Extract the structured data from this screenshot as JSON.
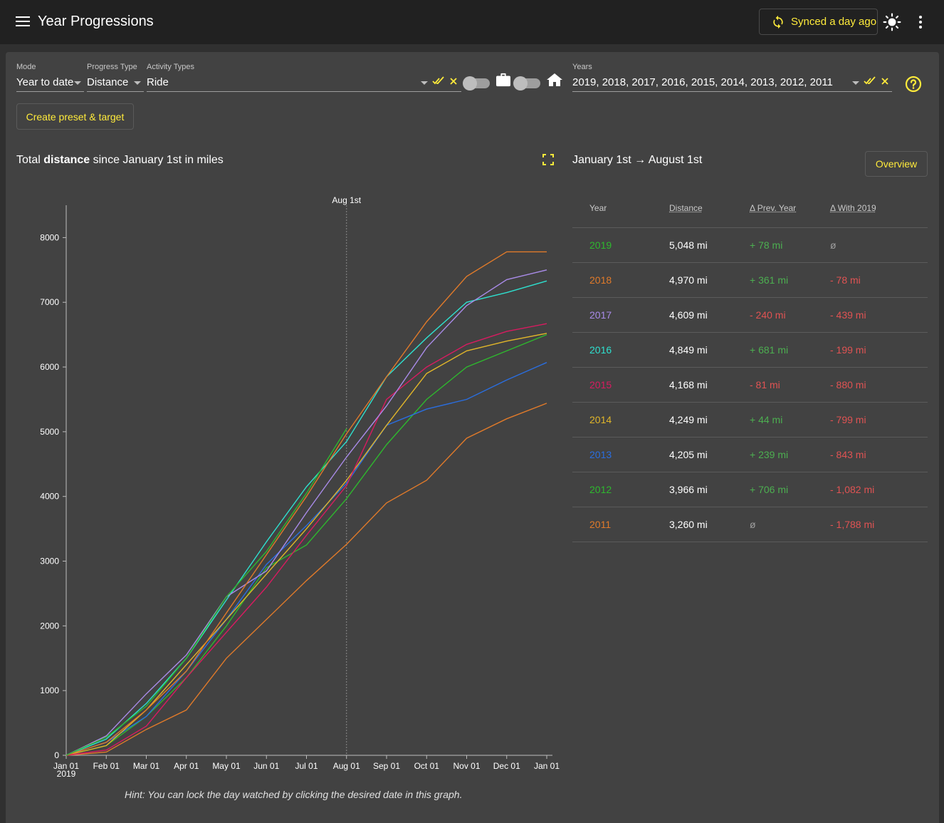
{
  "header": {
    "title": "Year Progressions",
    "sync_label": "Synced a day ago"
  },
  "filters": {
    "mode": {
      "label": "Mode",
      "value": "Year to date"
    },
    "progress_type": {
      "label": "Progress Type",
      "value": "Distance"
    },
    "activity_types": {
      "label": "Activity Types",
      "value": "Ride"
    },
    "years": {
      "label": "Years",
      "value": "2019, 2018, 2017, 2016, 2015, 2014, 2013, 2012, 2011"
    }
  },
  "preset_button": "Create preset & target",
  "chart_title": {
    "prefix": "Total ",
    "bold": "distance",
    "suffix": " since January 1st in miles"
  },
  "range_title": "January 1st → August 1st",
  "overview_button": "Overview",
  "hint": "Hint: You can lock the day watched by clicking the desired date in this graph.",
  "table": {
    "headers": [
      "Year",
      "Distance",
      "Δ Prev. Year",
      "Δ With 2019"
    ],
    "rows": [
      {
        "year": "2019",
        "distance": "5,048 mi",
        "prev": "+ 78 mi",
        "with2019": "ø"
      },
      {
        "year": "2018",
        "distance": "4,970 mi",
        "prev": "+ 361 mi",
        "with2019": "- 78 mi"
      },
      {
        "year": "2017",
        "distance": "4,609 mi",
        "prev": "- 240 mi",
        "with2019": "- 439 mi"
      },
      {
        "year": "2016",
        "distance": "4,849 mi",
        "prev": "+ 681 mi",
        "with2019": "- 199 mi"
      },
      {
        "year": "2015",
        "distance": "4,168 mi",
        "prev": "- 81 mi",
        "with2019": "- 880 mi"
      },
      {
        "year": "2014",
        "distance": "4,249 mi",
        "prev": "+ 44 mi",
        "with2019": "- 799 mi"
      },
      {
        "year": "2013",
        "distance": "4,205 mi",
        "prev": "+ 239 mi",
        "with2019": "- 843 mi"
      },
      {
        "year": "2012",
        "distance": "3,966 mi",
        "prev": "+ 706 mi",
        "with2019": "- 1,082 mi"
      },
      {
        "year": "2011",
        "distance": "3,260 mi",
        "prev": "ø",
        "with2019": "- 1,788 mi"
      }
    ]
  },
  "colors": {
    "accent": "#ffeb3b",
    "positive": "#4caf50",
    "negative": "#e05353",
    "year_colors": {
      "2019": "#2eb82e",
      "2018": "#e07a2a",
      "2017": "#a98be8",
      "2016": "#2ee0cf",
      "2015": "#d81b60",
      "2014": "#e0b52a",
      "2013": "#2a6ee0",
      "2012": "#2eb82e",
      "2011": "#e07a2a"
    }
  },
  "chart_data": {
    "type": "line",
    "title": "Total distance since January 1st in miles",
    "xlabel": "",
    "ylabel": "",
    "x_ticks": [
      "Jan 01",
      "Feb 01",
      "Mar 01",
      "Apr 01",
      "May 01",
      "Jun 01",
      "Jul 01",
      "Aug 01",
      "Sep 01",
      "Oct 01",
      "Nov 01",
      "Dec 01",
      "Jan 01"
    ],
    "x_tick_sublabel": "2019",
    "ylim": [
      0,
      8500
    ],
    "y_ticks": [
      0,
      1000,
      2000,
      3000,
      4000,
      5000,
      6000,
      7000,
      8000
    ],
    "marker": {
      "label": "Aug 1st",
      "month_index": 7
    },
    "x_unit": "month index (0 = Jan 01, 12 = Jan 01 next year)",
    "series": [
      {
        "name": "2019",
        "x": [
          0,
          1,
          2,
          3,
          4,
          5,
          6,
          7
        ],
        "values": [
          0,
          280,
          760,
          1500,
          2450,
          3150,
          4050,
          5048
        ]
      },
      {
        "name": "2018",
        "x": [
          0,
          1,
          2,
          3,
          4,
          5,
          6,
          7,
          8,
          9,
          10,
          11,
          12
        ],
        "values": [
          0,
          200,
          700,
          1300,
          2200,
          3100,
          4000,
          4970,
          5850,
          6700,
          7400,
          7780,
          7780
        ]
      },
      {
        "name": "2017",
        "x": [
          0,
          1,
          2,
          3,
          4,
          5,
          6,
          7,
          8,
          9,
          10,
          11,
          12
        ],
        "values": [
          0,
          300,
          950,
          1550,
          2450,
          2850,
          3750,
          4609,
          5400,
          6300,
          6950,
          7350,
          7500
        ]
      },
      {
        "name": "2016",
        "x": [
          0,
          1,
          2,
          3,
          4,
          5,
          6,
          7,
          8,
          9,
          10,
          11,
          12
        ],
        "values": [
          0,
          250,
          800,
          1500,
          2400,
          3300,
          4150,
          4849,
          5850,
          6450,
          7000,
          7150,
          7330
        ]
      },
      {
        "name": "2015",
        "x": [
          0,
          1,
          2,
          3,
          4,
          5,
          6,
          7,
          8,
          9,
          10,
          11,
          12
        ],
        "values": [
          0,
          80,
          450,
          1200,
          1900,
          2600,
          3400,
          4168,
          5500,
          6000,
          6350,
          6550,
          6670
        ]
      },
      {
        "name": "2014",
        "x": [
          0,
          1,
          2,
          3,
          4,
          5,
          6,
          7,
          8,
          9,
          10,
          11,
          12
        ],
        "values": [
          0,
          150,
          700,
          1400,
          2100,
          2800,
          3500,
          4249,
          5100,
          5900,
          6250,
          6400,
          6520
        ]
      },
      {
        "name": "2013",
        "x": [
          0,
          1,
          2,
          3,
          4,
          5,
          6,
          7,
          8,
          9,
          10,
          11,
          12
        ],
        "values": [
          0,
          200,
          600,
          1300,
          2100,
          2950,
          3550,
          4205,
          5100,
          5350,
          5500,
          5800,
          6070
        ]
      },
      {
        "name": "2012",
        "x": [
          0,
          1,
          2,
          3,
          4,
          5,
          6,
          7,
          8,
          9,
          10,
          11,
          12
        ],
        "values": [
          0,
          150,
          600,
          1200,
          2000,
          2900,
          3250,
          3966,
          4800,
          5500,
          6000,
          6250,
          6500
        ]
      },
      {
        "name": "2011",
        "x": [
          0,
          1,
          2,
          3,
          4,
          5,
          6,
          7,
          8,
          9,
          10,
          11,
          12
        ],
        "values": [
          0,
          50,
          400,
          700,
          1500,
          2100,
          2700,
          3260,
          3900,
          4250,
          4900,
          5200,
          5440
        ]
      }
    ]
  }
}
